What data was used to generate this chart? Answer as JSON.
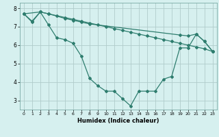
{
  "title": "",
  "xlabel": "Humidex (Indice chaleur)",
  "bg_color": "#d6f0ef",
  "grid_color": "#b0cccb",
  "line_color": "#2e7d6e",
  "xlim": [
    -0.5,
    23.5
  ],
  "ylim": [
    2.5,
    8.3
  ],
  "xticks": [
    0,
    1,
    2,
    3,
    4,
    5,
    6,
    7,
    8,
    9,
    10,
    11,
    12,
    13,
    14,
    15,
    16,
    17,
    18,
    19,
    20,
    21,
    22,
    23
  ],
  "yticks": [
    3,
    4,
    5,
    6,
    7,
    8
  ],
  "line1_x": [
    0,
    1,
    2,
    3,
    4,
    5,
    6,
    7,
    8,
    9,
    10,
    11,
    12,
    13,
    14,
    15,
    16,
    17,
    18,
    19,
    20,
    21,
    22,
    23
  ],
  "line1_y": [
    7.7,
    7.3,
    7.8,
    7.1,
    6.4,
    6.3,
    6.1,
    5.4,
    4.2,
    3.8,
    3.5,
    3.5,
    3.1,
    2.7,
    3.5,
    3.5,
    3.5,
    4.15,
    4.3,
    5.85,
    5.85,
    6.6,
    6.2,
    5.65
  ],
  "line2_x": [
    0,
    1,
    2,
    3,
    4,
    5,
    6,
    7,
    8,
    9,
    10,
    11,
    12,
    13,
    14,
    15,
    16,
    17,
    18,
    19,
    20,
    21,
    22,
    23
  ],
  "line2_y": [
    7.7,
    7.25,
    7.8,
    7.7,
    7.6,
    7.5,
    7.4,
    7.3,
    7.2,
    7.1,
    7.0,
    6.9,
    6.8,
    6.7,
    6.6,
    6.5,
    6.4,
    6.3,
    6.2,
    6.1,
    6.0,
    5.9,
    5.8,
    5.65
  ],
  "line3_x": [
    0,
    2,
    3,
    5,
    6,
    7,
    8,
    19,
    20,
    21,
    22,
    23
  ],
  "line3_y": [
    7.7,
    7.8,
    7.7,
    7.45,
    7.35,
    7.25,
    7.15,
    6.55,
    6.5,
    6.6,
    6.2,
    5.65
  ]
}
